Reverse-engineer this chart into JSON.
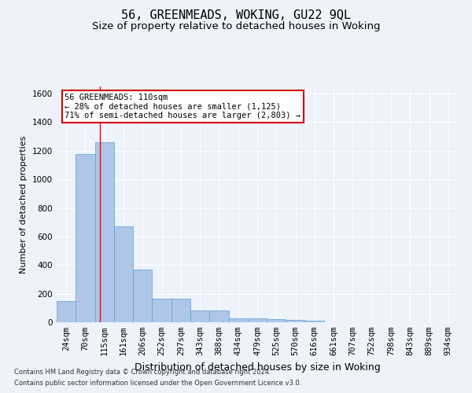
{
  "title1": "56, GREENMEADS, WOKING, GU22 9QL",
  "title2": "Size of property relative to detached houses in Woking",
  "xlabel": "Distribution of detached houses by size in Woking",
  "ylabel": "Number of detached properties",
  "categories": [
    "24sqm",
    "70sqm",
    "115sqm",
    "161sqm",
    "206sqm",
    "252sqm",
    "297sqm",
    "343sqm",
    "388sqm",
    "434sqm",
    "479sqm",
    "525sqm",
    "570sqm",
    "616sqm",
    "661sqm",
    "707sqm",
    "752sqm",
    "798sqm",
    "843sqm",
    "889sqm",
    "934sqm"
  ],
  "values": [
    150,
    1175,
    1260,
    670,
    370,
    165,
    165,
    80,
    80,
    30,
    25,
    20,
    15,
    10,
    0,
    0,
    0,
    0,
    0,
    0,
    0
  ],
  "bar_color": "#aec6e8",
  "bar_edge_color": "#5a9fd4",
  "ylim": [
    0,
    1650
  ],
  "yticks": [
    0,
    200,
    400,
    600,
    800,
    1000,
    1200,
    1400,
    1600
  ],
  "red_line_x": 1.75,
  "annotation_text": "56 GREENMEADS: 110sqm\n← 28% of detached houses are smaller (1,125)\n71% of semi-detached houses are larger (2,803) →",
  "annotation_box_color": "#ffffff",
  "annotation_box_edge": "#cc0000",
  "footnote1": "Contains HM Land Registry data © Crown copyright and database right 2024.",
  "footnote2": "Contains public sector information licensed under the Open Government Licence v3.0.",
  "background_color": "#eef2fb",
  "grid_color": "#ffffff",
  "title1_fontsize": 11,
  "title2_fontsize": 9.5,
  "xlabel_fontsize": 9,
  "ylabel_fontsize": 8,
  "tick_fontsize": 7.5,
  "footnote_fontsize": 6,
  "annotation_fontsize": 7.5
}
